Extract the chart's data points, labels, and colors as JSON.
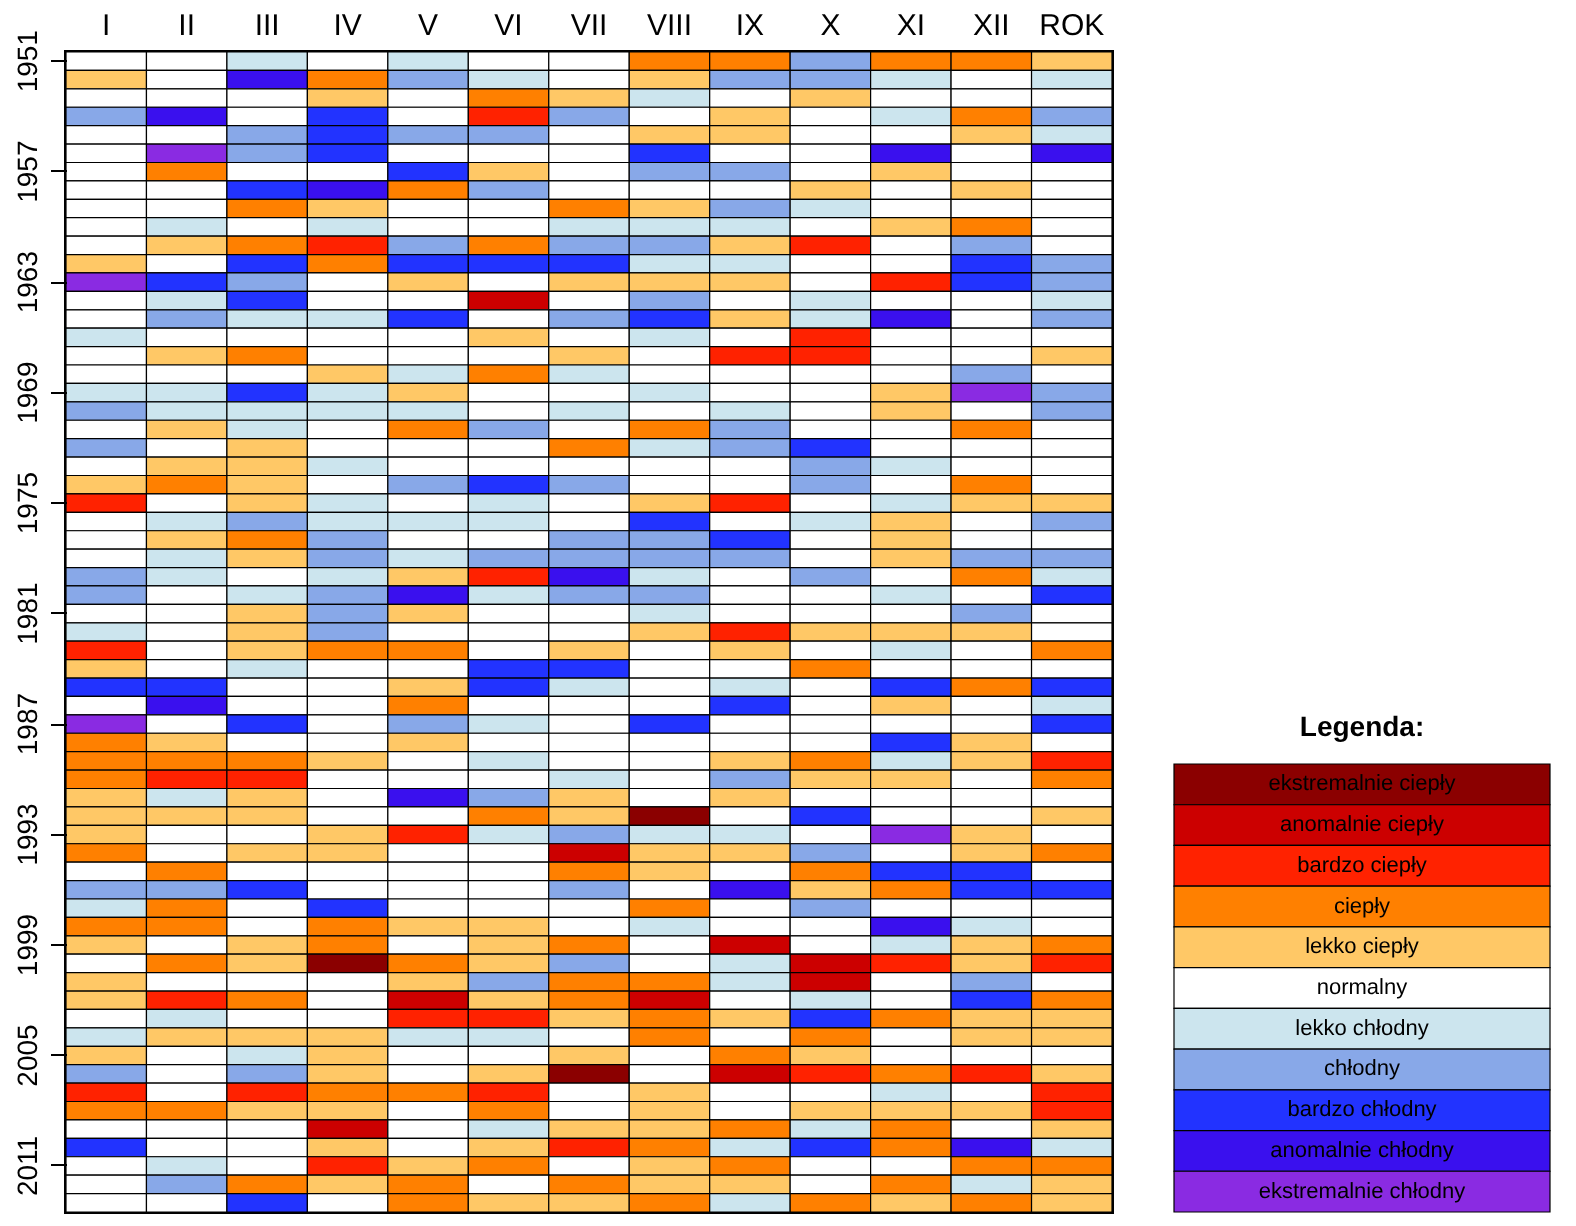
{
  "chart_data": {
    "type": "heatmap",
    "categories": [
      "I",
      "II",
      "III",
      "IV",
      "V",
      "VI",
      "VII",
      "VIII",
      "IX",
      "X",
      "XI",
      "XII",
      "ROK"
    ],
    "y_categories": [
      "1951",
      null,
      null,
      null,
      null,
      null,
      "1957",
      null,
      null,
      null,
      null,
      null,
      "1963",
      null,
      null,
      null,
      null,
      null,
      "1969",
      null,
      null,
      null,
      null,
      null,
      "1975",
      null,
      null,
      null,
      null,
      null,
      "1981",
      null,
      null,
      null,
      null,
      null,
      "1987",
      null,
      null,
      null,
      null,
      null,
      "1993",
      null,
      null,
      null,
      null,
      null,
      "1999",
      null,
      null,
      null,
      null,
      null,
      "2005",
      null,
      null,
      null,
      null,
      null,
      "2011",
      null,
      null
    ],
    "cells": [
      [
        0,
        0,
        -1,
        0,
        -1,
        0,
        0,
        2,
        2,
        -2,
        2,
        2,
        1
      ],
      [
        1,
        0,
        -4,
        2,
        -2,
        -1,
        0,
        1,
        -2,
        -2,
        -1,
        0,
        -1
      ],
      [
        0,
        0,
        0,
        1,
        0,
        2,
        1,
        -1,
        0,
        1,
        0,
        0,
        0
      ],
      [
        -2,
        -4,
        0,
        -3,
        0,
        3,
        -2,
        0,
        1,
        0,
        -1,
        2,
        -2
      ],
      [
        0,
        0,
        -2,
        -3,
        -2,
        -2,
        0,
        1,
        1,
        0,
        0,
        1,
        -1
      ],
      [
        0,
        -5,
        -2,
        -3,
        0,
        0,
        0,
        -3,
        0,
        0,
        -4,
        0,
        -4
      ],
      [
        0,
        2,
        0,
        0,
        -3,
        1,
        0,
        -2,
        -2,
        0,
        1,
        0,
        0
      ],
      [
        0,
        0,
        -3,
        -4,
        2,
        -2,
        0,
        0,
        0,
        1,
        0,
        1,
        0
      ],
      [
        0,
        0,
        2,
        1,
        0,
        0,
        2,
        1,
        -2,
        -1,
        0,
        0,
        0
      ],
      [
        0,
        -1,
        0,
        -1,
        0,
        0,
        -1,
        -1,
        -1,
        0,
        1,
        2,
        0
      ],
      [
        0,
        1,
        2,
        3,
        -2,
        2,
        -2,
        -2,
        1,
        3,
        0,
        -2,
        0
      ],
      [
        1,
        0,
        -3,
        2,
        -3,
        -3,
        -3,
        -1,
        -1,
        0,
        0,
        -3,
        -2
      ],
      [
        -5,
        -3,
        -2,
        0,
        1,
        0,
        1,
        1,
        1,
        0,
        3,
        -3,
        -2
      ],
      [
        0,
        -1,
        -3,
        0,
        0,
        4,
        0,
        -2,
        0,
        -1,
        0,
        0,
        -1
      ],
      [
        0,
        -2,
        -1,
        -1,
        -3,
        0,
        -2,
        -3,
        1,
        -1,
        -4,
        0,
        -2
      ],
      [
        -1,
        0,
        0,
        0,
        0,
        1,
        0,
        -1,
        0,
        3,
        0,
        0,
        0
      ],
      [
        0,
        1,
        2,
        0,
        0,
        0,
        1,
        0,
        3,
        3,
        0,
        0,
        1
      ],
      [
        0,
        0,
        0,
        1,
        -1,
        2,
        -1,
        0,
        0,
        0,
        0,
        -2,
        0
      ],
      [
        -1,
        -1,
        -3,
        -1,
        1,
        0,
        0,
        -1,
        0,
        0,
        1,
        -5,
        -2
      ],
      [
        -2,
        -1,
        -1,
        -1,
        -1,
        0,
        -1,
        0,
        -1,
        0,
        1,
        0,
        -2
      ],
      [
        0,
        1,
        -1,
        0,
        2,
        -2,
        0,
        2,
        -2,
        0,
        0,
        2,
        0
      ],
      [
        -2,
        0,
        1,
        0,
        0,
        0,
        2,
        -1,
        -2,
        -3,
        0,
        0,
        0
      ],
      [
        0,
        1,
        1,
        -1,
        0,
        0,
        0,
        0,
        0,
        -2,
        -1,
        0,
        0
      ],
      [
        1,
        2,
        1,
        0,
        -2,
        -3,
        -2,
        0,
        0,
        -2,
        0,
        2,
        0
      ],
      [
        3,
        0,
        1,
        -1,
        0,
        -1,
        0,
        1,
        3,
        0,
        -1,
        1,
        1
      ],
      [
        0,
        -1,
        -2,
        -1,
        -1,
        -1,
        0,
        -3,
        0,
        -1,
        1,
        0,
        -2
      ],
      [
        0,
        1,
        2,
        -2,
        0,
        0,
        -2,
        -2,
        -3,
        0,
        1,
        0,
        0
      ],
      [
        0,
        -1,
        1,
        -2,
        -1,
        -2,
        -2,
        -2,
        -2,
        0,
        1,
        -2,
        -2
      ],
      [
        -2,
        -1,
        0,
        -1,
        1,
        3,
        -4,
        -1,
        0,
        -2,
        0,
        2,
        -1
      ],
      [
        -2,
        0,
        -1,
        -2,
        -4,
        -1,
        -2,
        -2,
        0,
        0,
        -1,
        0,
        -3
      ],
      [
        0,
        0,
        1,
        -2,
        1,
        0,
        0,
        -1,
        0,
        0,
        0,
        -2,
        0
      ],
      [
        -1,
        0,
        1,
        -2,
        0,
        0,
        0,
        1,
        3,
        1,
        1,
        1,
        0
      ],
      [
        3,
        0,
        1,
        2,
        2,
        0,
        1,
        0,
        1,
        0,
        -1,
        0,
        2
      ],
      [
        1,
        0,
        -1,
        0,
        0,
        -3,
        -3,
        0,
        0,
        2,
        0,
        0,
        0
      ],
      [
        -3,
        -3,
        0,
        0,
        1,
        -3,
        -1,
        0,
        -1,
        0,
        -3,
        2,
        -3
      ],
      [
        0,
        -4,
        0,
        0,
        2,
        0,
        0,
        0,
        -3,
        0,
        1,
        0,
        -1
      ],
      [
        -5,
        0,
        -3,
        0,
        -2,
        -1,
        0,
        -3,
        0,
        0,
        0,
        0,
        -3
      ],
      [
        2,
        1,
        0,
        0,
        1,
        0,
        0,
        0,
        0,
        0,
        -3,
        1,
        0
      ],
      [
        2,
        2,
        2,
        1,
        0,
        -1,
        0,
        0,
        1,
        2,
        -1,
        1,
        3
      ],
      [
        2,
        3,
        3,
        0,
        0,
        0,
        -1,
        0,
        -2,
        1,
        1,
        0,
        2
      ],
      [
        1,
        -1,
        1,
        0,
        -4,
        -2,
        1,
        0,
        1,
        0,
        0,
        0,
        0
      ],
      [
        1,
        1,
        1,
        0,
        0,
        2,
        1,
        5,
        0,
        -3,
        0,
        0,
        1
      ],
      [
        1,
        0,
        0,
        1,
        3,
        -1,
        -2,
        -1,
        -1,
        0,
        -5,
        1,
        0
      ],
      [
        2,
        0,
        1,
        1,
        0,
        0,
        4,
        1,
        1,
        -2,
        0,
        1,
        2
      ],
      [
        0,
        2,
        0,
        0,
        0,
        0,
        2,
        1,
        0,
        2,
        -3,
        -3,
        0
      ],
      [
        -2,
        -2,
        -3,
        0,
        0,
        0,
        -2,
        0,
        -4,
        1,
        2,
        -3,
        -3
      ],
      [
        -1,
        2,
        0,
        -3,
        0,
        0,
        0,
        2,
        0,
        -2,
        0,
        0,
        0
      ],
      [
        2,
        2,
        0,
        2,
        1,
        1,
        0,
        -1,
        0,
        0,
        -4,
        -1,
        0
      ],
      [
        1,
        0,
        1,
        2,
        0,
        1,
        2,
        0,
        4,
        0,
        -1,
        1,
        2
      ],
      [
        0,
        2,
        1,
        5,
        2,
        1,
        -2,
        0,
        -1,
        4,
        3,
        1,
        3
      ],
      [
        1,
        0,
        0,
        0,
        1,
        -2,
        2,
        2,
        -1,
        4,
        0,
        -2,
        0
      ],
      [
        1,
        3,
        2,
        0,
        4,
        1,
        2,
        4,
        0,
        -1,
        0,
        -3,
        2
      ],
      [
        0,
        -1,
        0,
        0,
        3,
        3,
        1,
        2,
        1,
        -3,
        2,
        1,
        1
      ],
      [
        -1,
        1,
        1,
        1,
        -1,
        -1,
        0,
        2,
        0,
        2,
        0,
        1,
        1
      ],
      [
        1,
        0,
        -1,
        1,
        0,
        0,
        1,
        0,
        2,
        1,
        0,
        0,
        0
      ],
      [
        -2,
        0,
        -2,
        1,
        0,
        1,
        5,
        0,
        4,
        3,
        2,
        3,
        1
      ],
      [
        3,
        0,
        3,
        2,
        2,
        3,
        0,
        1,
        0,
        0,
        -1,
        0,
        3
      ],
      [
        2,
        2,
        1,
        1,
        0,
        2,
        0,
        1,
        0,
        1,
        1,
        1,
        3
      ],
      [
        0,
        0,
        0,
        4,
        0,
        -1,
        1,
        1,
        2,
        -1,
        2,
        0,
        1
      ],
      [
        -3,
        0,
        0,
        1,
        0,
        1,
        3,
        2,
        -1,
        -3,
        2,
        -4,
        -1
      ],
      [
        0,
        -1,
        0,
        3,
        1,
        2,
        0,
        1,
        2,
        0,
        0,
        2,
        2
      ],
      [
        0,
        -2,
        2,
        1,
        2,
        0,
        2,
        1,
        1,
        0,
        2,
        -1,
        1
      ],
      [
        0,
        0,
        -3,
        0,
        2,
        1,
        1,
        2,
        -1,
        2,
        1,
        2,
        1
      ]
    ],
    "clabel": "Legenda:",
    "cticks": [
      {
        "value": 5,
        "label": "ekstremalnie ciepły"
      },
      {
        "value": 4,
        "label": "anomalnie ciepły"
      },
      {
        "value": 3,
        "label": "bardzo ciepły"
      },
      {
        "value": 2,
        "label": "ciepły"
      },
      {
        "value": 1,
        "label": "lekko ciepły"
      },
      {
        "value": 0,
        "label": "normalny"
      },
      {
        "value": -1,
        "label": "lekko chłodny"
      },
      {
        "value": -2,
        "label": "chłodny"
      },
      {
        "value": -3,
        "label": "bardzo chłodny"
      },
      {
        "value": -4,
        "label": "anomalnie chłodny"
      },
      {
        "value": -5,
        "label": "ekstremalnie chłodny"
      }
    ],
    "colors": [
      "#8b0000",
      "#cc0000",
      "#ff2200",
      "#ff8000",
      "#ffc866",
      "#ffffff",
      "#cce5ee",
      "#88a8e8",
      "#2233ff",
      "#3a10ee",
      "#8a2be2"
    ]
  }
}
